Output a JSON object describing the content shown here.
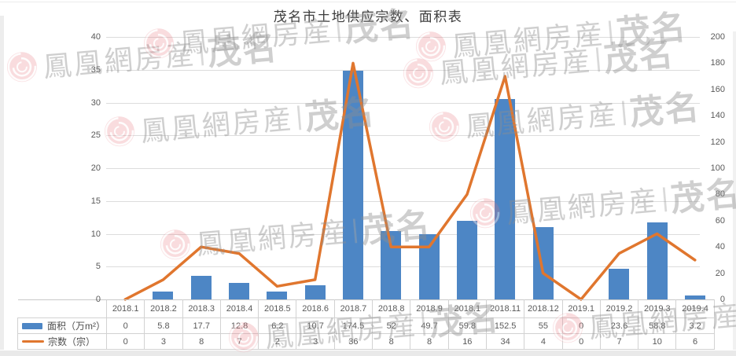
{
  "title": "茂名市土地供应宗数、面积表",
  "watermark": {
    "text": "鳳凰網房産",
    "separator": "|",
    "brand": "茂名",
    "logo": "phoenix-swirl",
    "logo_color": "#e4737d"
  },
  "chart_data": {
    "type": "combo",
    "title": "茂名市土地供应宗数、面积表",
    "categories": [
      "2018.1",
      "2018.2",
      "2018.3",
      "2018.4",
      "2018.5",
      "2018.6",
      "2018.7",
      "2018.8",
      "2018.9",
      "2018.1",
      "2018.11",
      "2018.12",
      "2019.1",
      "2019.2",
      "2019.3",
      "2019.4"
    ],
    "series": [
      {
        "name": "面积（万m²）",
        "type": "bar",
        "axis": "right",
        "color": "#4d86c5",
        "values": [
          0,
          5.8,
          17.7,
          12.8,
          6.2,
          10.7,
          174.5,
          52,
          49.7,
          59.8,
          152.5,
          55,
          0,
          23.6,
          58.8,
          3.2
        ]
      },
      {
        "name": "宗数（宗）",
        "type": "line",
        "axis": "left",
        "color": "#e0762e",
        "values": [
          0,
          3,
          8,
          7,
          2,
          3,
          36,
          8,
          8,
          16,
          34,
          4,
          0,
          7,
          10,
          6
        ]
      }
    ],
    "left_axis": {
      "ticks": [
        0,
        5,
        10,
        15,
        20,
        25,
        30,
        35,
        40
      ],
      "min": 0,
      "max": 40
    },
    "right_axis": {
      "ticks": [
        0,
        20,
        40,
        60,
        80,
        100,
        120,
        140,
        160,
        180,
        200
      ],
      "min": 0,
      "max": 200
    },
    "grid": true,
    "gridlines_follow": "left_axis",
    "legend_position": "table-left"
  }
}
